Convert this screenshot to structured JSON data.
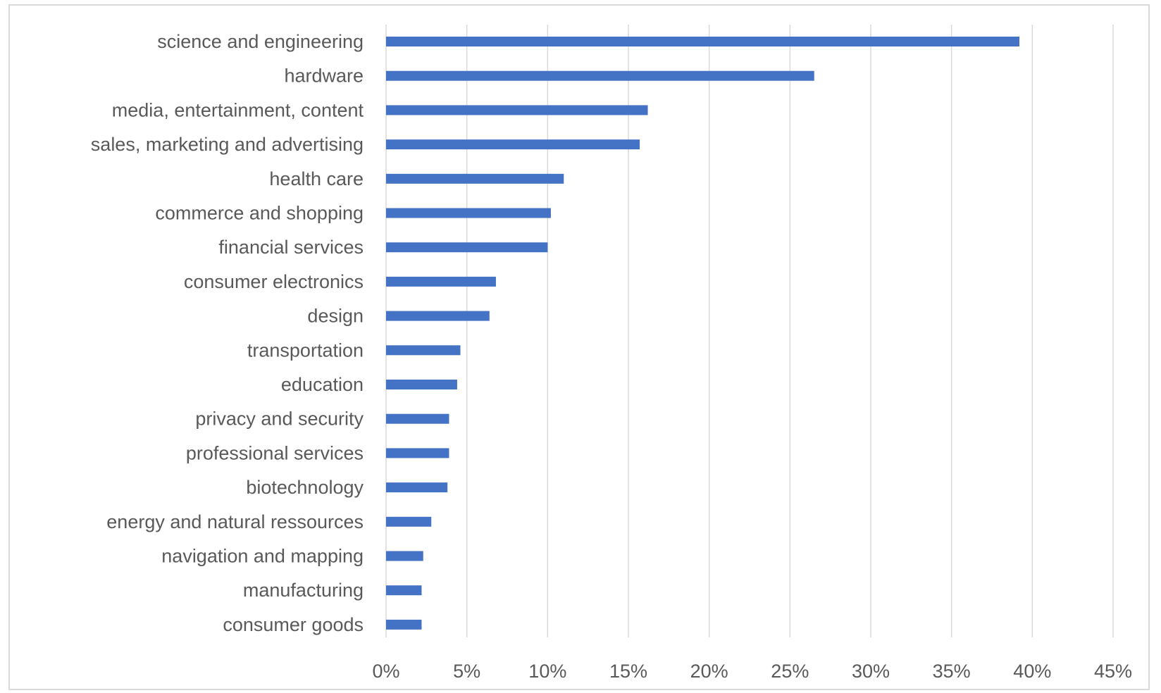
{
  "chart_data": {
    "type": "bar",
    "orientation": "horizontal",
    "title": "",
    "xlabel": "",
    "ylabel": "",
    "xlim": [
      0,
      45
    ],
    "grid": true,
    "legend": "none",
    "bar_color": "#4472c4",
    "categories": [
      "science and engineering",
      "hardware",
      "media, entertainment, content",
      "sales, marketing and advertising",
      "health care",
      "commerce and shopping",
      "financial services",
      "consumer electronics",
      "design",
      "transportation",
      "education",
      "privacy and security",
      "professional services",
      "biotechnology",
      "energy and natural ressources",
      "navigation and mapping",
      "manufacturing",
      "consumer goods"
    ],
    "values": [
      39.2,
      26.5,
      16.2,
      15.7,
      11.0,
      10.2,
      10.0,
      6.8,
      6.4,
      4.6,
      4.4,
      3.9,
      3.9,
      3.8,
      2.8,
      2.3,
      2.2,
      2.2
    ],
    "ticks": [
      {
        "value": 0,
        "label": "0%"
      },
      {
        "value": 5,
        "label": "5%"
      },
      {
        "value": 10,
        "label": "10%"
      },
      {
        "value": 15,
        "label": "15%"
      },
      {
        "value": 20,
        "label": "20%"
      },
      {
        "value": 25,
        "label": "25%"
      },
      {
        "value": 30,
        "label": "30%"
      },
      {
        "value": 35,
        "label": "35%"
      },
      {
        "value": 40,
        "label": "40%"
      },
      {
        "value": 45,
        "label": "45%"
      }
    ]
  }
}
